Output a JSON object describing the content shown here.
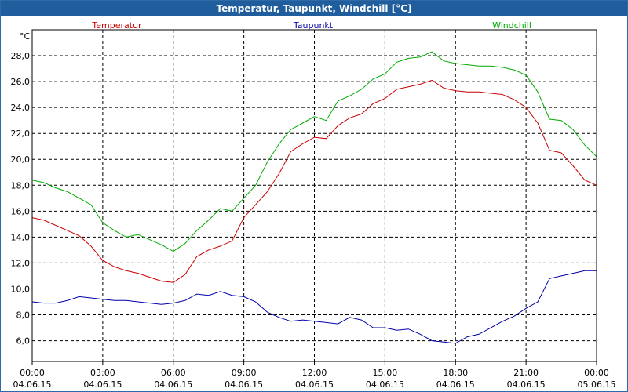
{
  "window": {
    "title": "Temperatur, Taupunkt, Windchill [°C]"
  },
  "colors": {
    "title_bar": "#1f5d9c",
    "temperature": "#cc0000",
    "dewpoint": "#0000aa",
    "windchill": "#00aa00",
    "grid": "#000000"
  },
  "chart_data": {
    "type": "line",
    "title": "Temperatur, Taupunkt, Windchill [°C]",
    "ylabel": "°C",
    "xlabel": "",
    "ylim": [
      4.4,
      30.0
    ],
    "xlim_hours": [
      0,
      24
    ],
    "grid": true,
    "legend_placement": "top",
    "y_ticks": [
      "6,0",
      "8,0",
      "10,0",
      "12,0",
      "14,0",
      "16,0",
      "18,0",
      "20,0",
      "22,0",
      "24,0",
      "26,0",
      "28,0"
    ],
    "x_ticks": [
      {
        "time": "00:00",
        "date": "04.06.15"
      },
      {
        "time": "03:00",
        "date": "04.06.15"
      },
      {
        "time": "06:00",
        "date": "04.06.15"
      },
      {
        "time": "09:00",
        "date": "04.06.15"
      },
      {
        "time": "12:00",
        "date": "04.06.15"
      },
      {
        "time": "15:00",
        "date": "04.06.15"
      },
      {
        "time": "18:00",
        "date": "04.06.15"
      },
      {
        "time": "21:00",
        "date": "04.06.15"
      },
      {
        "time": "00:00",
        "date": "05.06.15"
      }
    ],
    "x": [
      0,
      0.5,
      1,
      1.5,
      2,
      2.5,
      3,
      3.5,
      4,
      4.5,
      5,
      5.5,
      6,
      6.5,
      7,
      7.5,
      8,
      8.5,
      9,
      9.5,
      10,
      10.5,
      11,
      11.5,
      12,
      12.5,
      13,
      13.5,
      14,
      14.5,
      15,
      15.5,
      16,
      16.5,
      17,
      17.5,
      18,
      18.5,
      19,
      19.5,
      20,
      20.5,
      21,
      21.5,
      22,
      22.5,
      23,
      23.5,
      24
    ],
    "series": [
      {
        "name": "Temperatur",
        "color": "#cc0000",
        "values": [
          15.5,
          15.3,
          14.9,
          14.5,
          14.1,
          13.3,
          12.2,
          11.7,
          11.4,
          11.2,
          10.9,
          10.6,
          10.5,
          11.1,
          12.5,
          13.0,
          13.3,
          13.7,
          15.5,
          16.5,
          17.5,
          18.9,
          20.6,
          21.2,
          21.7,
          21.6,
          22.6,
          23.2,
          23.5,
          24.3,
          24.7,
          25.4,
          25.6,
          25.8,
          26.1,
          25.5,
          25.3,
          25.2,
          25.2,
          25.1,
          25.0,
          24.6,
          24.0,
          22.8,
          20.7,
          20.5,
          19.5,
          18.4,
          18.0
        ]
      },
      {
        "name": "Taupunkt",
        "color": "#0000aa",
        "values": [
          9.0,
          8.9,
          8.9,
          9.1,
          9.4,
          9.3,
          9.2,
          9.1,
          9.1,
          9.0,
          8.9,
          8.8,
          8.9,
          9.1,
          9.6,
          9.5,
          9.8,
          9.5,
          9.4,
          9.0,
          8.2,
          7.8,
          7.5,
          7.6,
          7.5,
          7.4,
          7.3,
          7.8,
          7.6,
          7.0,
          7.0,
          6.8,
          6.9,
          6.5,
          6.0,
          5.9,
          5.8,
          6.3,
          6.5,
          7.0,
          7.5,
          7.9,
          8.5,
          9.0,
          10.8,
          11.0,
          11.2,
          11.4,
          11.4
        ]
      },
      {
        "name": "Windchill",
        "color": "#00aa00",
        "values": [
          18.4,
          18.2,
          17.8,
          17.5,
          17.0,
          16.5,
          15.1,
          14.5,
          14.0,
          14.2,
          13.8,
          13.4,
          12.9,
          13.5,
          14.5,
          15.3,
          16.2,
          16.0,
          17.0,
          18.0,
          19.8,
          21.2,
          22.3,
          22.8,
          23.3,
          23.0,
          24.5,
          24.9,
          25.4,
          26.2,
          26.6,
          27.5,
          27.8,
          27.9,
          28.3,
          27.6,
          27.4,
          27.3,
          27.2,
          27.2,
          27.1,
          26.9,
          26.5,
          25.2,
          23.1,
          23.0,
          22.3,
          21.1,
          20.2
        ]
      }
    ]
  }
}
